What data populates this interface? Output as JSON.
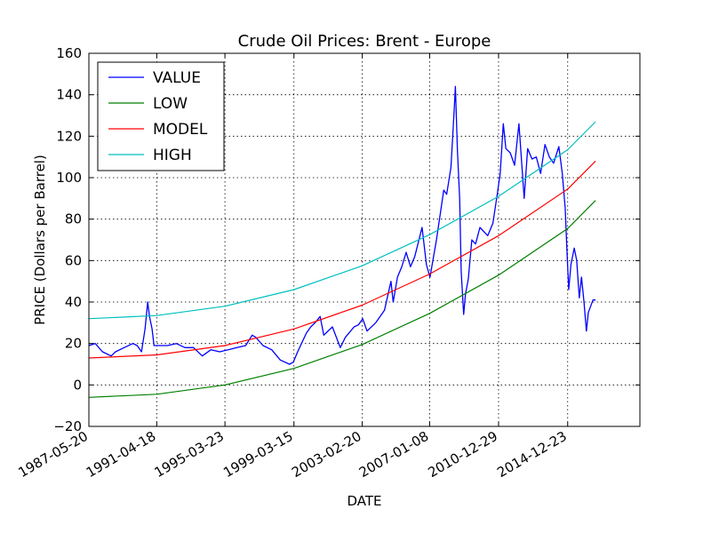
{
  "chart_data": {
    "type": "line",
    "title": "Crude Oil Prices: Brent - Europe",
    "xlabel": "DATE",
    "ylabel": "PRICE (Dollars per Barrel)",
    "x_range": [
      "1987-05-20",
      "2019-02-20"
    ],
    "ylim": [
      -20,
      160
    ],
    "x_ticks": [
      "1987-05-20",
      "1991-04-18",
      "1995-03-23",
      "1999-03-15",
      "2003-02-20",
      "2007-01-08",
      "2010-12-29",
      "2014-12-23"
    ],
    "y_ticks": [
      -20,
      0,
      20,
      40,
      60,
      80,
      100,
      120,
      140,
      160
    ],
    "grid": true,
    "legend_position": "top-left",
    "series": [
      {
        "name": "VALUE",
        "color": "#0000ff",
        "points": [
          [
            "1987-05-20",
            19
          ],
          [
            "1987-10-01",
            20
          ],
          [
            "1988-03-01",
            16
          ],
          [
            "1988-09-01",
            14
          ],
          [
            "1988-12-01",
            16
          ],
          [
            "1989-06-01",
            18
          ],
          [
            "1989-12-01",
            20
          ],
          [
            "1990-03-01",
            19
          ],
          [
            "1990-06-01",
            16
          ],
          [
            "1990-08-15",
            27
          ],
          [
            "1990-10-10",
            40
          ],
          [
            "1990-11-15",
            33
          ],
          [
            "1991-01-10",
            27
          ],
          [
            "1991-02-20",
            19
          ],
          [
            "1991-06-01",
            19
          ],
          [
            "1991-12-01",
            19
          ],
          [
            "1992-06-01",
            20
          ],
          [
            "1992-12-01",
            18
          ],
          [
            "1993-06-01",
            18
          ],
          [
            "1993-12-01",
            14
          ],
          [
            "1994-06-01",
            17
          ],
          [
            "1994-12-01",
            16
          ],
          [
            "1995-06-01",
            17
          ],
          [
            "1995-12-01",
            18
          ],
          [
            "1996-06-01",
            19
          ],
          [
            "1996-10-15",
            24
          ],
          [
            "1997-01-01",
            23
          ],
          [
            "1997-06-01",
            19
          ],
          [
            "1997-12-01",
            17
          ],
          [
            "1998-06-01",
            12
          ],
          [
            "1998-12-10",
            10
          ],
          [
            "1999-03-01",
            11
          ],
          [
            "1999-06-01",
            16
          ],
          [
            "1999-12-01",
            25
          ],
          [
            "2000-03-01",
            28
          ],
          [
            "2000-06-01",
            30
          ],
          [
            "2000-09-15",
            33
          ],
          [
            "2000-12-01",
            24
          ],
          [
            "2001-06-01",
            28
          ],
          [
            "2001-11-15",
            18
          ],
          [
            "2002-03-01",
            23
          ],
          [
            "2002-09-01",
            28
          ],
          [
            "2002-12-01",
            29
          ],
          [
            "2003-03-01",
            32
          ],
          [
            "2003-06-01",
            26
          ],
          [
            "2003-12-01",
            30
          ],
          [
            "2004-06-01",
            36
          ],
          [
            "2004-10-15",
            50
          ],
          [
            "2004-12-01",
            40
          ],
          [
            "2005-03-01",
            52
          ],
          [
            "2005-06-01",
            57
          ],
          [
            "2005-09-01",
            64
          ],
          [
            "2005-12-01",
            57
          ],
          [
            "2006-03-01",
            62
          ],
          [
            "2006-08-01",
            76
          ],
          [
            "2006-11-01",
            58
          ],
          [
            "2007-01-15",
            52
          ],
          [
            "2007-06-01",
            70
          ],
          [
            "2007-11-01",
            94
          ],
          [
            "2008-01-01",
            92
          ],
          [
            "2008-04-01",
            105
          ],
          [
            "2008-06-01",
            130
          ],
          [
            "2008-07-03",
            144
          ],
          [
            "2008-08-15",
            113
          ],
          [
            "2008-10-01",
            90
          ],
          [
            "2008-11-01",
            55
          ],
          [
            "2008-12-24",
            34
          ],
          [
            "2009-02-01",
            44
          ],
          [
            "2009-04-01",
            51
          ],
          [
            "2009-06-15",
            70
          ],
          [
            "2009-09-01",
            68
          ],
          [
            "2009-12-01",
            76
          ],
          [
            "2010-05-15",
            72
          ],
          [
            "2010-09-01",
            78
          ],
          [
            "2010-12-01",
            92
          ],
          [
            "2011-02-01",
            102
          ],
          [
            "2011-04-08",
            126
          ],
          [
            "2011-06-01",
            114
          ],
          [
            "2011-09-01",
            112
          ],
          [
            "2011-12-01",
            106
          ],
          [
            "2012-03-01",
            126
          ],
          [
            "2012-06-20",
            90
          ],
          [
            "2012-09-01",
            114
          ],
          [
            "2012-12-01",
            109
          ],
          [
            "2013-03-01",
            110
          ],
          [
            "2013-06-01",
            102
          ],
          [
            "2013-09-01",
            116
          ],
          [
            "2013-12-01",
            110
          ],
          [
            "2014-03-01",
            107
          ],
          [
            "2014-06-20",
            115
          ],
          [
            "2014-09-01",
            102
          ],
          [
            "2014-11-01",
            85
          ],
          [
            "2014-12-01",
            68
          ],
          [
            "2015-01-13",
            46
          ],
          [
            "2015-03-01",
            58
          ],
          [
            "2015-05-10",
            66
          ],
          [
            "2015-07-01",
            60
          ],
          [
            "2015-08-25",
            42
          ],
          [
            "2015-10-10",
            52
          ],
          [
            "2015-12-01",
            40
          ],
          [
            "2016-01-20",
            26
          ],
          [
            "2016-03-01",
            35
          ],
          [
            "2016-06-08",
            41
          ],
          [
            "2016-08-01",
            41
          ]
        ]
      },
      {
        "name": "LOW",
        "color": "#008000",
        "points": [
          [
            "1987-05-20",
            -6
          ],
          [
            "1991-04-18",
            -4.5
          ],
          [
            "1995-03-23",
            0
          ],
          [
            "1999-03-15",
            8
          ],
          [
            "2003-02-20",
            19.5
          ],
          [
            "2007-01-08",
            34.5
          ],
          [
            "2010-12-29",
            53
          ],
          [
            "2014-12-23",
            75.5
          ],
          [
            "2016-08-01",
            89
          ]
        ]
      },
      {
        "name": "MODEL",
        "color": "#ff0000",
        "points": [
          [
            "1987-05-20",
            13
          ],
          [
            "1991-04-18",
            14.5
          ],
          [
            "1995-03-23",
            19
          ],
          [
            "1999-03-15",
            27
          ],
          [
            "2003-02-20",
            38.5
          ],
          [
            "2007-01-08",
            53.5
          ],
          [
            "2010-12-29",
            72
          ],
          [
            "2014-12-23",
            94.5
          ],
          [
            "2016-08-01",
            108
          ]
        ]
      },
      {
        "name": "HIGH",
        "color": "#00bfbf",
        "points": [
          [
            "1987-05-20",
            32
          ],
          [
            "1991-04-18",
            33.5
          ],
          [
            "1995-03-23",
            38
          ],
          [
            "1999-03-15",
            46
          ],
          [
            "2003-02-20",
            57.5
          ],
          [
            "2007-01-08",
            72.5
          ],
          [
            "2010-12-29",
            91
          ],
          [
            "2014-12-23",
            113.5
          ],
          [
            "2016-08-01",
            127
          ]
        ]
      }
    ]
  }
}
